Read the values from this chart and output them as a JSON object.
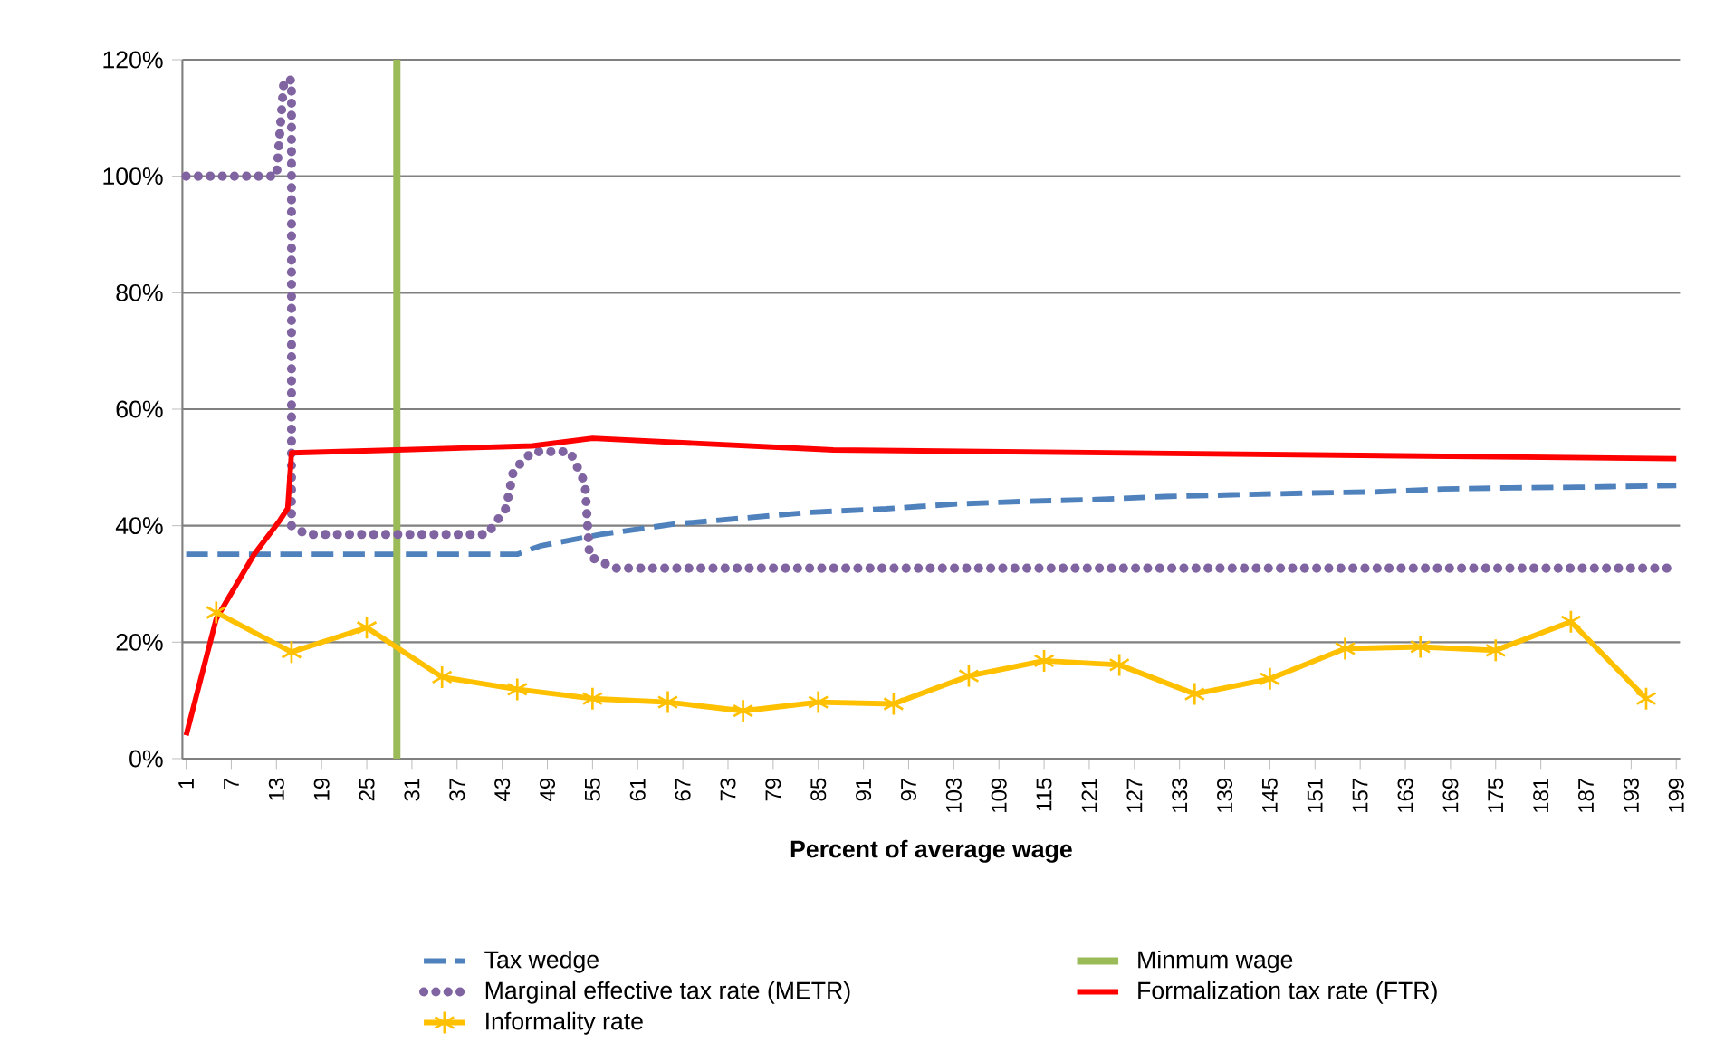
{
  "chart_data": {
    "type": "line",
    "xlabel": "Percent of average wage",
    "xlim": [
      0.5,
      199.5
    ],
    "xticks": [
      1,
      7,
      13,
      19,
      25,
      31,
      37,
      43,
      49,
      55,
      61,
      67,
      73,
      79,
      85,
      91,
      97,
      103,
      109,
      115,
      121,
      127,
      133,
      139,
      145,
      151,
      157,
      163,
      169,
      175,
      181,
      187,
      193,
      199
    ],
    "ylim": [
      0,
      120
    ],
    "yticks": [
      {
        "value": 0,
        "label": "0%"
      },
      {
        "value": 20,
        "label": "20%"
      },
      {
        "value": 40,
        "label": "40%"
      },
      {
        "value": 60,
        "label": "60%"
      },
      {
        "value": 80,
        "label": "80%"
      },
      {
        "value": 100,
        "label": "100%"
      },
      {
        "value": 120,
        "label": "120%"
      }
    ],
    "grid": "y",
    "legend": "bottom",
    "ref_lines": [
      {
        "axis": "x",
        "value": 29,
        "label": "Minmum wage",
        "color": "#9bbb59"
      }
    ],
    "series": [
      {
        "name": "Tax wedge",
        "color": "#4f81bd",
        "line_style": "dashed",
        "marker": "none",
        "x": [
          1,
          45,
          48,
          56,
          66,
          75,
          84,
          94,
          103,
          113,
          122,
          131,
          140,
          150,
          159,
          168,
          177,
          186,
          199
        ],
        "values": [
          35.1,
          35.1,
          36.5,
          38.5,
          40.3,
          41.3,
          42.3,
          42.9,
          43.7,
          44.2,
          44.5,
          45,
          45.3,
          45.6,
          45.8,
          46.3,
          46.5,
          46.6,
          46.9
        ]
      },
      {
        "name": "Marginal effective tax rate (METR)",
        "color": "#8064a2",
        "line_style": "dotted",
        "marker": "none",
        "x": [
          1,
          13,
          14,
          15,
          15,
          17,
          41,
          43.5,
          44.5,
          47,
          52,
          54,
          54.3,
          54.6,
          58,
          199
        ],
        "values": [
          100,
          100,
          116.5,
          116.5,
          40,
          38.5,
          38.5,
          43,
          49.5,
          52.7,
          52.7,
          47.3,
          40.9,
          34.7,
          32.7,
          32.7
        ]
      },
      {
        "name": "Formalization tax rate (FTR)",
        "color": "#ff0000",
        "line_style": "solid",
        "marker": "none",
        "x": [
          1,
          5,
          10,
          13.5,
          14.5,
          15,
          29,
          47,
          55,
          87,
          199
        ],
        "values": [
          4,
          24,
          35,
          41,
          43,
          52.5,
          53,
          53.7,
          55,
          53,
          51.5
        ]
      },
      {
        "name": "Informality rate",
        "color": "#ffc000",
        "line_style": "solid",
        "marker": "cross",
        "x": [
          5,
          15,
          25,
          35,
          45,
          55,
          65,
          75,
          85,
          95,
          105,
          115,
          125,
          135,
          145,
          155,
          165,
          175,
          185,
          195
        ],
        "values": [
          25.1,
          18.3,
          22.5,
          14,
          11.9,
          10.3,
          9.7,
          8.2,
          9.7,
          9.4,
          14.2,
          16.8,
          16.1,
          11.1,
          13.7,
          18.9,
          19.2,
          18.6,
          23.5,
          10.3
        ]
      }
    ]
  }
}
